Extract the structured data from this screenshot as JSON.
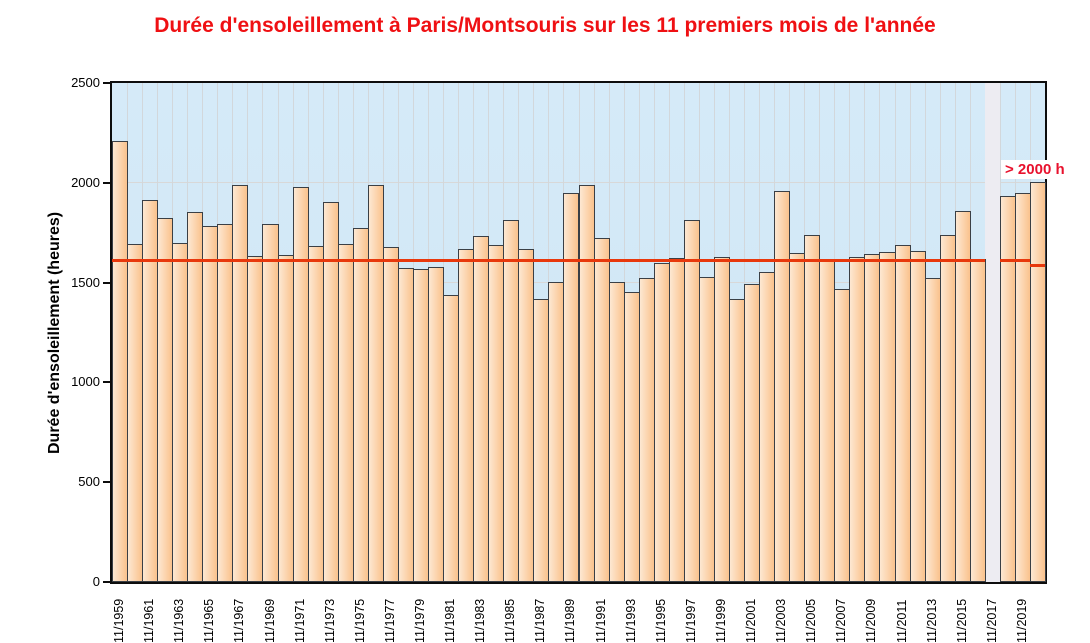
{
  "chart_data": {
    "type": "bar",
    "title": "Durée d'ensoleillement à Paris/Montsouris sur les 11 premiers mois de l'année",
    "ylabel": "Durée d'ensoleillement (heures)",
    "xlabel": "",
    "ylim": [
      0,
      2500
    ],
    "y_ticks": [
      0,
      500,
      1000,
      1500,
      2000,
      2500
    ],
    "x_tick_labels": [
      "11/1959",
      "11/1961",
      "11/1963",
      "11/1965",
      "11/1967",
      "11/1969",
      "11/1971",
      "11/1973",
      "11/1975",
      "11/1977",
      "11/1979",
      "11/1981",
      "11/1983",
      "11/1985",
      "11/1987",
      "11/1989",
      "11/1991",
      "11/1993",
      "11/1995",
      "11/1997",
      "11/1999",
      "11/2001",
      "11/2003",
      "11/2005",
      "11/2007",
      "11/2009",
      "11/2011",
      "11/2013",
      "11/2015",
      "11/2017",
      "11/2019"
    ],
    "x": [
      1959,
      1960,
      1961,
      1962,
      1963,
      1964,
      1965,
      1966,
      1967,
      1968,
      1969,
      1970,
      1971,
      1972,
      1973,
      1974,
      1975,
      1976,
      1977,
      1978,
      1979,
      1980,
      1981,
      1982,
      1983,
      1984,
      1985,
      1986,
      1987,
      1988,
      1989,
      1990,
      1991,
      1992,
      1993,
      1994,
      1995,
      1996,
      1997,
      1998,
      1999,
      2000,
      2001,
      2002,
      2003,
      2004,
      2005,
      2006,
      2007,
      2008,
      2009,
      2010,
      2011,
      2012,
      2013,
      2014,
      2015,
      2016,
      2017,
      2018,
      2019,
      2020
    ],
    "values": [
      2210,
      1695,
      1915,
      1825,
      1700,
      1855,
      1785,
      1795,
      1990,
      1635,
      1795,
      1640,
      1980,
      1685,
      1905,
      1695,
      1775,
      1990,
      1680,
      1575,
      1570,
      1580,
      1440,
      1670,
      1735,
      1690,
      1815,
      1670,
      1420,
      1505,
      1950,
      1990,
      1725,
      1505,
      1455,
      1525,
      1600,
      1625,
      1815,
      1530,
      1630,
      1420,
      1495,
      1555,
      1960,
      1650,
      1740,
      1610,
      1470,
      1630,
      1645,
      1655,
      1690,
      1660,
      1525,
      1740,
      1860,
      1620,
      null,
      1935,
      1950,
      2005
    ],
    "missing_years": [
      2017
    ],
    "mean_line": {
      "value_main": 1615,
      "value_2020_segment": 1590
    },
    "annotation": {
      "text": "> 2000 h",
      "applies_to": 2020
    },
    "grid": true,
    "legend": false
  },
  "colors": {
    "title": "#ef1013",
    "annotation_text": "#e8112d",
    "mean_line": "#e8380c",
    "bar_fill_light": "#fde8d2",
    "bar_fill_dark": "#fac28d",
    "bar_border": "#3a3f45",
    "plot_bg_top": "#d5eaf8",
    "plot_bg_bottom": "#cfe6f4",
    "missing_column": "#edecf2",
    "vgrid": "#d2d7db",
    "hgrid": "#d8d8d8"
  }
}
